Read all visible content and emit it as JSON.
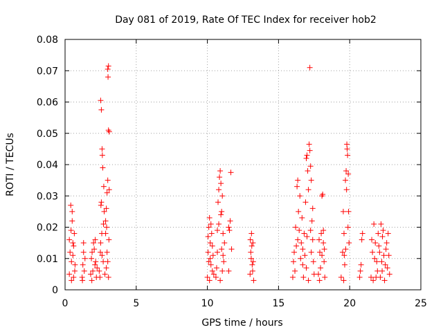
{
  "chart_data": {
    "type": "scatter",
    "title": "Day 081 of 2019, Rate Of TEC Index for receiver hob2",
    "xlabel": "GPS time / hours",
    "ylabel": "ROTI / TECUs",
    "xlim": [
      0,
      25
    ],
    "ylim": [
      0,
      0.08
    ],
    "xticks": [
      0,
      5,
      10,
      15,
      20,
      25
    ],
    "xtick_labels": [
      "0",
      "5",
      "10",
      "15",
      "20",
      "25"
    ],
    "yticks": [
      0,
      0.01,
      0.02,
      0.03,
      0.04,
      0.05,
      0.06,
      0.07,
      0.08
    ],
    "ytick_labels": [
      "0",
      "0.01",
      "0.02",
      "0.03",
      "0.04",
      "0.05",
      "0.06",
      "0.07",
      "0.08"
    ],
    "grid": true,
    "marker": "+",
    "color": "#ff0000",
    "series": [
      {
        "name": "ROTI",
        "points": [
          [
            0.3,
            0.005
          ],
          [
            0.35,
            0.012
          ],
          [
            0.4,
            0.027
          ],
          [
            0.42,
            0.019
          ],
          [
            0.45,
            0.009
          ],
          [
            0.5,
            0.022
          ],
          [
            0.55,
            0.015
          ],
          [
            0.6,
            0.004
          ],
          [
            0.65,
            0.018
          ],
          [
            0.7,
            0.008
          ],
          [
            0.5,
            0.025
          ],
          [
            0.45,
            0.003
          ],
          [
            0.55,
            0.011
          ],
          [
            0.6,
            0.014
          ],
          [
            0.3,
            0.016
          ],
          [
            0.68,
            0.006
          ],
          [
            1.2,
            0.004
          ],
          [
            1.25,
            0.008
          ],
          [
            1.3,
            0.012
          ],
          [
            1.35,
            0.006
          ],
          [
            1.4,
            0.01
          ],
          [
            1.22,
            0.003
          ],
          [
            1.3,
            0.015
          ],
          [
            1.8,
            0.005
          ],
          [
            1.9,
            0.012
          ],
          [
            2.0,
            0.015
          ],
          [
            2.1,
            0.008
          ],
          [
            2.2,
            0.004
          ],
          [
            1.85,
            0.01
          ],
          [
            1.95,
            0.006
          ],
          [
            2.05,
            0.013
          ],
          [
            2.15,
            0.009
          ],
          [
            2.25,
            0.007
          ],
          [
            1.88,
            0.003
          ],
          [
            2.12,
            0.016
          ],
          [
            2.4,
            0.006
          ],
          [
            2.5,
            0.015
          ],
          [
            2.55,
            0.028
          ],
          [
            2.5,
            0.0605
          ],
          [
            2.55,
            0.0575
          ],
          [
            2.6,
            0.045
          ],
          [
            2.65,
            0.039
          ],
          [
            2.7,
            0.021
          ],
          [
            2.6,
            0.011
          ],
          [
            2.45,
            0.004
          ],
          [
            2.75,
            0.025
          ],
          [
            2.62,
            0.043
          ],
          [
            2.52,
            0.027
          ],
          [
            2.68,
            0.009
          ],
          [
            2.58,
            0.018
          ],
          [
            2.72,
            0.033
          ],
          [
            2.48,
            0.012
          ],
          [
            2.8,
            0.005
          ],
          [
            2.85,
            0.018
          ],
          [
            2.9,
            0.026
          ],
          [
            2.95,
            0.031
          ],
          [
            3.0,
            0.0705
          ],
          [
            3.02,
            0.068
          ],
          [
            3.05,
            0.0715
          ],
          [
            3.1,
            0.0505
          ],
          [
            3.05,
            0.051
          ],
          [
            3.0,
            0.035
          ],
          [
            3.1,
            0.032
          ],
          [
            2.9,
            0.007
          ],
          [
            2.95,
            0.012
          ],
          [
            3.05,
            0.004
          ],
          [
            2.85,
            0.022
          ],
          [
            3.08,
            0.016
          ],
          [
            2.92,
            0.02
          ],
          [
            3.0,
            0.009
          ],
          [
            10.0,
            0.004
          ],
          [
            10.05,
            0.012
          ],
          [
            10.1,
            0.02
          ],
          [
            10.15,
            0.023
          ],
          [
            10.2,
            0.015
          ],
          [
            10.25,
            0.008
          ],
          [
            10.3,
            0.018
          ],
          [
            10.35,
            0.006
          ],
          [
            10.4,
            0.011
          ],
          [
            10.15,
            0.003
          ],
          [
            10.05,
            0.017
          ],
          [
            10.25,
            0.021
          ],
          [
            10.35,
            0.014
          ],
          [
            10.1,
            0.009
          ],
          [
            10.45,
            0.005
          ],
          [
            10.2,
            0.01
          ],
          [
            10.6,
            0.004
          ],
          [
            10.7,
            0.012
          ],
          [
            10.75,
            0.028
          ],
          [
            10.8,
            0.032
          ],
          [
            10.85,
            0.036
          ],
          [
            10.9,
            0.038
          ],
          [
            10.95,
            0.034
          ],
          [
            11.0,
            0.025
          ],
          [
            11.05,
            0.03
          ],
          [
            11.1,
            0.018
          ],
          [
            11.15,
            0.009
          ],
          [
            11.2,
            0.015
          ],
          [
            10.65,
            0.007
          ],
          [
            10.8,
            0.021
          ],
          [
            10.9,
            0.003
          ],
          [
            11.0,
            0.013
          ],
          [
            11.05,
            0.006
          ],
          [
            10.7,
            0.019
          ],
          [
            10.95,
            0.024
          ],
          [
            11.1,
            0.011
          ],
          [
            11.5,
            0.006
          ],
          [
            11.55,
            0.019
          ],
          [
            11.6,
            0.022
          ],
          [
            11.65,
            0.0375
          ],
          [
            11.7,
            0.013
          ],
          [
            11.5,
            0.02
          ],
          [
            13.0,
            0.005
          ],
          [
            13.05,
            0.012
          ],
          [
            13.1,
            0.018
          ],
          [
            13.15,
            0.008
          ],
          [
            13.2,
            0.015
          ],
          [
            13.25,
            0.003
          ],
          [
            13.08,
            0.01
          ],
          [
            13.18,
            0.006
          ],
          [
            13.12,
            0.014
          ],
          [
            13.22,
            0.009
          ],
          [
            13.02,
            0.016
          ],
          [
            16.0,
            0.004
          ],
          [
            16.1,
            0.012
          ],
          [
            16.2,
            0.02
          ],
          [
            16.3,
            0.033
          ],
          [
            16.35,
            0.035
          ],
          [
            16.4,
            0.025
          ],
          [
            16.5,
            0.03
          ],
          [
            16.6,
            0.015
          ],
          [
            16.7,
            0.008
          ],
          [
            16.8,
            0.018
          ],
          [
            16.9,
            0.028
          ],
          [
            16.95,
            0.042
          ],
          [
            17.0,
            0.043
          ],
          [
            17.05,
            0.038
          ],
          [
            17.1,
            0.032
          ],
          [
            17.15,
            0.0465
          ],
          [
            17.2,
            0.0445
          ],
          [
            17.25,
            0.0395
          ],
          [
            17.3,
            0.035
          ],
          [
            17.35,
            0.022
          ],
          [
            17.4,
            0.016
          ],
          [
            17.45,
            0.009
          ],
          [
            17.5,
            0.005
          ],
          [
            17.2,
            0.071
          ],
          [
            16.15,
            0.006
          ],
          [
            16.25,
            0.014
          ],
          [
            16.45,
            0.019
          ],
          [
            16.55,
            0.01
          ],
          [
            16.65,
            0.023
          ],
          [
            16.75,
            0.004
          ],
          [
            16.85,
            0.011
          ],
          [
            17.0,
            0.017
          ],
          [
            17.1,
            0.003
          ],
          [
            17.3,
            0.012
          ],
          [
            17.4,
            0.026
          ],
          [
            16.05,
            0.009
          ],
          [
            16.95,
            0.007
          ],
          [
            17.25,
            0.019
          ],
          [
            16.35,
            0.016
          ],
          [
            16.7,
            0.013
          ],
          [
            17.8,
            0.005
          ],
          [
            17.9,
            0.012
          ],
          [
            18.0,
            0.018
          ],
          [
            18.05,
            0.03
          ],
          [
            18.1,
            0.0305
          ],
          [
            18.15,
            0.015
          ],
          [
            18.2,
            0.009
          ],
          [
            18.25,
            0.004
          ],
          [
            17.85,
            0.016
          ],
          [
            17.95,
            0.007
          ],
          [
            18.05,
            0.011
          ],
          [
            18.15,
            0.019
          ],
          [
            17.88,
            0.003
          ],
          [
            18.22,
            0.013
          ],
          [
            19.4,
            0.004
          ],
          [
            19.5,
            0.012
          ],
          [
            19.55,
            0.025
          ],
          [
            19.6,
            0.018
          ],
          [
            19.7,
            0.035
          ],
          [
            19.75,
            0.038
          ],
          [
            19.8,
            0.0465
          ],
          [
            19.82,
            0.045
          ],
          [
            19.85,
            0.043
          ],
          [
            19.9,
            0.037
          ],
          [
            19.92,
            0.025
          ],
          [
            19.95,
            0.015
          ],
          [
            19.65,
            0.008
          ],
          [
            19.58,
            0.003
          ],
          [
            19.72,
            0.013
          ],
          [
            19.88,
            0.02
          ],
          [
            19.78,
            0.032
          ],
          [
            19.62,
            0.011
          ],
          [
            20.7,
            0.004
          ],
          [
            20.8,
            0.008
          ],
          [
            20.9,
            0.018
          ],
          [
            20.85,
            0.016
          ],
          [
            20.75,
            0.006
          ],
          [
            21.5,
            0.004
          ],
          [
            21.6,
            0.012
          ],
          [
            21.7,
            0.021
          ],
          [
            21.8,
            0.015
          ],
          [
            21.9,
            0.009
          ],
          [
            22.0,
            0.018
          ],
          [
            22.1,
            0.012
          ],
          [
            22.2,
            0.021
          ],
          [
            22.3,
            0.017
          ],
          [
            22.4,
            0.011
          ],
          [
            22.5,
            0.008
          ],
          [
            22.6,
            0.015
          ],
          [
            22.7,
            0.018
          ],
          [
            22.8,
            0.005
          ],
          [
            21.65,
            0.003
          ],
          [
            21.75,
            0.01
          ],
          [
            21.95,
            0.006
          ],
          [
            22.05,
            0.014
          ],
          [
            22.15,
            0.004
          ],
          [
            22.25,
            0.009
          ],
          [
            22.35,
            0.019
          ],
          [
            22.45,
            0.003
          ],
          [
            22.55,
            0.013
          ],
          [
            22.65,
            0.007
          ],
          [
            22.75,
            0.011
          ],
          [
            21.55,
            0.016
          ],
          [
            21.85,
            0.004
          ],
          [
            22.28,
            0.006
          ]
        ]
      }
    ]
  }
}
